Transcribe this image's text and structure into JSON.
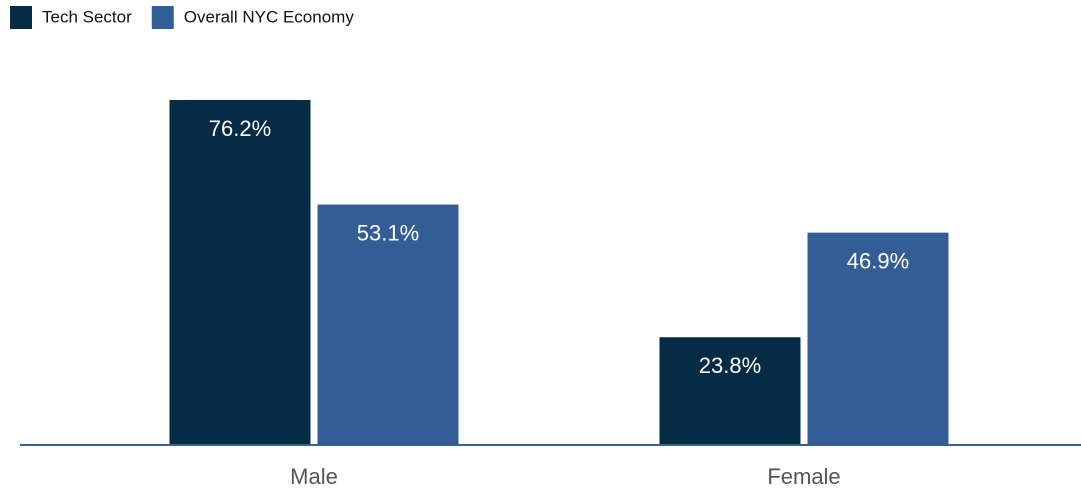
{
  "chart_data": {
    "type": "bar",
    "categories": [
      "Male",
      "Female"
    ],
    "series": [
      {
        "name": "Tech Sector",
        "color": "#062b44",
        "values": [
          76.2,
          23.8
        ],
        "value_labels": [
          "76.2%",
          "23.8%"
        ]
      },
      {
        "name": "Overall NYC Economy",
        "color": "#335d95",
        "values": [
          53.1,
          46.9
        ],
        "value_labels": [
          "53.1%",
          "46.9%"
        ]
      }
    ],
    "legend": "top-left"
  }
}
